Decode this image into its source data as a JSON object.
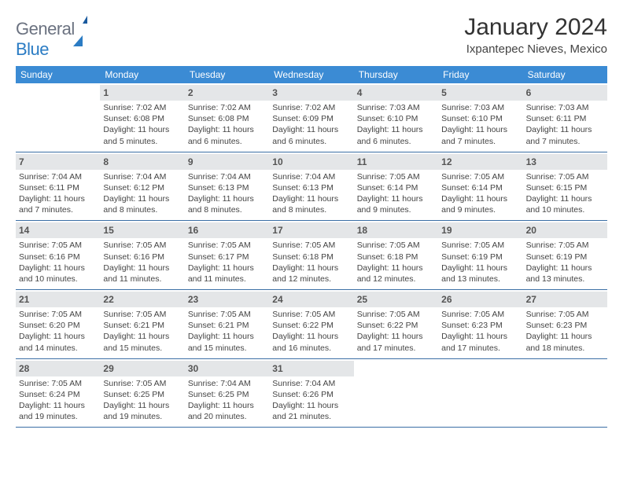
{
  "logo": {
    "text_general": "General",
    "text_blue": "Blue"
  },
  "title": "January 2024",
  "location": "Ixpantepec Nieves, Mexico",
  "colors": {
    "header_bg": "#3b8bd4",
    "header_text": "#ffffff",
    "daynum_bg": "#e4e6e8",
    "row_border": "#3b6fa5",
    "body_text": "#444444"
  },
  "days_of_week": [
    "Sunday",
    "Monday",
    "Tuesday",
    "Wednesday",
    "Thursday",
    "Friday",
    "Saturday"
  ],
  "weeks": [
    [
      null,
      {
        "n": "1",
        "sr": "7:02 AM",
        "ss": "6:08 PM",
        "dl": "11 hours and 5 minutes."
      },
      {
        "n": "2",
        "sr": "7:02 AM",
        "ss": "6:08 PM",
        "dl": "11 hours and 6 minutes."
      },
      {
        "n": "3",
        "sr": "7:02 AM",
        "ss": "6:09 PM",
        "dl": "11 hours and 6 minutes."
      },
      {
        "n": "4",
        "sr": "7:03 AM",
        "ss": "6:10 PM",
        "dl": "11 hours and 6 minutes."
      },
      {
        "n": "5",
        "sr": "7:03 AM",
        "ss": "6:10 PM",
        "dl": "11 hours and 7 minutes."
      },
      {
        "n": "6",
        "sr": "7:03 AM",
        "ss": "6:11 PM",
        "dl": "11 hours and 7 minutes."
      }
    ],
    [
      {
        "n": "7",
        "sr": "7:04 AM",
        "ss": "6:11 PM",
        "dl": "11 hours and 7 minutes."
      },
      {
        "n": "8",
        "sr": "7:04 AM",
        "ss": "6:12 PM",
        "dl": "11 hours and 8 minutes."
      },
      {
        "n": "9",
        "sr": "7:04 AM",
        "ss": "6:13 PM",
        "dl": "11 hours and 8 minutes."
      },
      {
        "n": "10",
        "sr": "7:04 AM",
        "ss": "6:13 PM",
        "dl": "11 hours and 8 minutes."
      },
      {
        "n": "11",
        "sr": "7:05 AM",
        "ss": "6:14 PM",
        "dl": "11 hours and 9 minutes."
      },
      {
        "n": "12",
        "sr": "7:05 AM",
        "ss": "6:14 PM",
        "dl": "11 hours and 9 minutes."
      },
      {
        "n": "13",
        "sr": "7:05 AM",
        "ss": "6:15 PM",
        "dl": "11 hours and 10 minutes."
      }
    ],
    [
      {
        "n": "14",
        "sr": "7:05 AM",
        "ss": "6:16 PM",
        "dl": "11 hours and 10 minutes."
      },
      {
        "n": "15",
        "sr": "7:05 AM",
        "ss": "6:16 PM",
        "dl": "11 hours and 11 minutes."
      },
      {
        "n": "16",
        "sr": "7:05 AM",
        "ss": "6:17 PM",
        "dl": "11 hours and 11 minutes."
      },
      {
        "n": "17",
        "sr": "7:05 AM",
        "ss": "6:18 PM",
        "dl": "11 hours and 12 minutes."
      },
      {
        "n": "18",
        "sr": "7:05 AM",
        "ss": "6:18 PM",
        "dl": "11 hours and 12 minutes."
      },
      {
        "n": "19",
        "sr": "7:05 AM",
        "ss": "6:19 PM",
        "dl": "11 hours and 13 minutes."
      },
      {
        "n": "20",
        "sr": "7:05 AM",
        "ss": "6:19 PM",
        "dl": "11 hours and 13 minutes."
      }
    ],
    [
      {
        "n": "21",
        "sr": "7:05 AM",
        "ss": "6:20 PM",
        "dl": "11 hours and 14 minutes."
      },
      {
        "n": "22",
        "sr": "7:05 AM",
        "ss": "6:21 PM",
        "dl": "11 hours and 15 minutes."
      },
      {
        "n": "23",
        "sr": "7:05 AM",
        "ss": "6:21 PM",
        "dl": "11 hours and 15 minutes."
      },
      {
        "n": "24",
        "sr": "7:05 AM",
        "ss": "6:22 PM",
        "dl": "11 hours and 16 minutes."
      },
      {
        "n": "25",
        "sr": "7:05 AM",
        "ss": "6:22 PM",
        "dl": "11 hours and 17 minutes."
      },
      {
        "n": "26",
        "sr": "7:05 AM",
        "ss": "6:23 PM",
        "dl": "11 hours and 17 minutes."
      },
      {
        "n": "27",
        "sr": "7:05 AM",
        "ss": "6:23 PM",
        "dl": "11 hours and 18 minutes."
      }
    ],
    [
      {
        "n": "28",
        "sr": "7:05 AM",
        "ss": "6:24 PM",
        "dl": "11 hours and 19 minutes."
      },
      {
        "n": "29",
        "sr": "7:05 AM",
        "ss": "6:25 PM",
        "dl": "11 hours and 19 minutes."
      },
      {
        "n": "30",
        "sr": "7:04 AM",
        "ss": "6:25 PM",
        "dl": "11 hours and 20 minutes."
      },
      {
        "n": "31",
        "sr": "7:04 AM",
        "ss": "6:26 PM",
        "dl": "11 hours and 21 minutes."
      },
      null,
      null,
      null
    ]
  ],
  "labels": {
    "sunrise": "Sunrise:",
    "sunset": "Sunset:",
    "daylight": "Daylight:"
  }
}
